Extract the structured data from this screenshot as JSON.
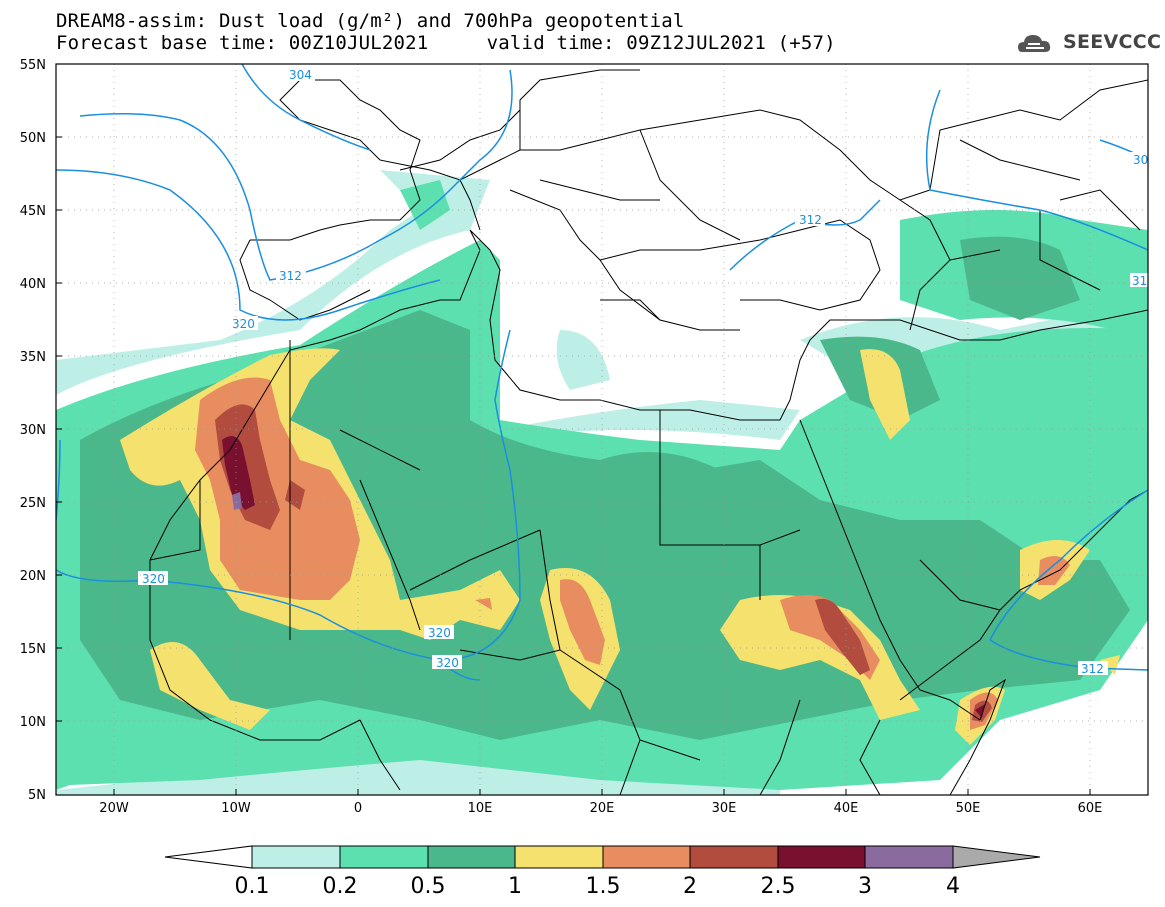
{
  "title": {
    "line1": "DREAM8-assim: Dust load (g/m²) and 700hPa geopotential",
    "line2": "Forecast base time: 00Z10JUL2021     valid time: 09Z12JUL2021 (+57)"
  },
  "logo": {
    "text": "SEEVCCC",
    "icon": "cloud-logo-icon"
  },
  "axes": {
    "lat_labels": [
      "55N",
      "50N",
      "45N",
      "40N",
      "35N",
      "30N",
      "25N",
      "20N",
      "15N",
      "10N",
      "5N"
    ],
    "lon_labels": [
      "20W",
      "10W",
      "0",
      "10E",
      "20E",
      "30E",
      "40E",
      "50E",
      "60E"
    ]
  },
  "contours": [
    {
      "label": "304"
    },
    {
      "label": "312"
    },
    {
      "label": "320"
    },
    {
      "label": "320"
    },
    {
      "label": "320"
    },
    {
      "label": "320"
    },
    {
      "label": "312"
    },
    {
      "label": "312"
    },
    {
      "label": "312"
    },
    {
      "label": "30"
    },
    {
      "label": "31"
    }
  ],
  "colorbar": {
    "labels": [
      "0.1",
      "0.2",
      "0.5",
      "1",
      "1.5",
      "2",
      "2.5",
      "3",
      "4"
    ],
    "colors": [
      "#ffffff",
      "#bdefe6",
      "#5de0b0",
      "#4ab88a",
      "#f5e16e",
      "#e88d5f",
      "#b14c3f",
      "#7a1030",
      "#8b6aa0",
      "#aaaaaa"
    ]
  },
  "palette": {
    "c01": "#bdefe6",
    "c02": "#5de0b0",
    "c05": "#4ab88a",
    "c1": "#f5e16e",
    "c15": "#e88d5f",
    "c2": "#b14c3f",
    "c25": "#7a1030",
    "c3": "#8b6aa0",
    "contour": "#1a8fe0"
  }
}
